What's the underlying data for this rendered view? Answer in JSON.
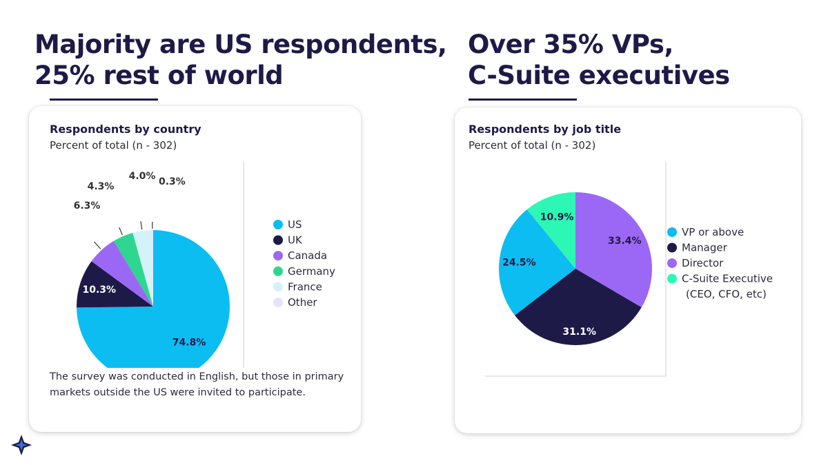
{
  "headlines": {
    "left": {
      "line1": "Majority are US respondents,",
      "line2": "25% rest of world"
    },
    "right": {
      "line1": "Over 35% VPs,",
      "line2": "C-Suite executives"
    }
  },
  "colors": {
    "navy": "#1e1a47",
    "sky": "#0cbdf2",
    "purple": "#9b68f5",
    "green": "#2ed68f",
    "light_cyan": "#d3f2f9",
    "lavender": "#e6e2fb",
    "mint": "#2df7b4"
  },
  "logo_icon": "star-burst-logo-icon",
  "cards": {
    "country": {
      "title": "Respondents by country",
      "subtitle": "Percent of total (n - 302)",
      "note": "The survey was conducted in English, but those in primary markets outside the US were invited to participate."
    },
    "job": {
      "title": "Respondents by job title",
      "subtitle": "Percent of total (n - 302)"
    }
  },
  "chart_data": [
    {
      "type": "pie",
      "title": "Respondents by country",
      "subtitle": "Percent of total (n - 302)",
      "legend_position": "right",
      "slices": [
        {
          "label": "US",
          "value": 74.8,
          "display": "74.8%",
          "color": "#0cbdf2",
          "text_color": "#1e1a47",
          "label_mode": "inside"
        },
        {
          "label": "UK",
          "value": 10.3,
          "display": "10.3%",
          "color": "#1e1a47",
          "text_color": "#ffffff",
          "label_mode": "inside"
        },
        {
          "label": "Canada",
          "value": 6.3,
          "display": "6.3%",
          "color": "#9b68f5",
          "text_color": "#333333",
          "label_mode": "outside"
        },
        {
          "label": "Germany",
          "value": 4.3,
          "display": "4.3%",
          "color": "#2ed68f",
          "text_color": "#333333",
          "label_mode": "outside"
        },
        {
          "label": "France",
          "value": 4.0,
          "display": "4.0%",
          "color": "#d3f2f9",
          "text_color": "#333333",
          "label_mode": "outside"
        },
        {
          "label": "Other",
          "value": 0.3,
          "display": "0.3%",
          "color": "#e6e2fb",
          "text_color": "#333333",
          "label_mode": "outside"
        }
      ]
    },
    {
      "type": "pie",
      "title": "Respondents by job title",
      "subtitle": "Percent of total (n - 302)",
      "legend_position": "right",
      "slices": [
        {
          "label": "Director",
          "value": 33.4,
          "display": "33.4%",
          "color": "#9b68f5",
          "text_color": "#1e1a47",
          "label_mode": "inside"
        },
        {
          "label": "Manager",
          "value": 31.1,
          "display": "31.1%",
          "color": "#1e1a47",
          "text_color": "#ffffff",
          "label_mode": "inside"
        },
        {
          "label": "VP or above",
          "value": 24.5,
          "display": "24.5%",
          "color": "#0cbdf2",
          "text_color": "#1e1a47",
          "label_mode": "inside"
        },
        {
          "label": "C-Suite Executive (CEO, CFO, etc)",
          "value": 10.9,
          "display": "10.9%",
          "color": "#2df7b4",
          "text_color": "#1e1a47",
          "label_mode": "inside"
        }
      ],
      "legend": [
        {
          "label": "VP or above",
          "color": "#0cbdf2"
        },
        {
          "label": "Manager",
          "color": "#1e1a47"
        },
        {
          "label": "Director",
          "color": "#9b68f5"
        },
        {
          "label": "C-Suite Executive",
          "label2": "(CEO, CFO, etc)",
          "color": "#2df7b4"
        }
      ]
    }
  ]
}
